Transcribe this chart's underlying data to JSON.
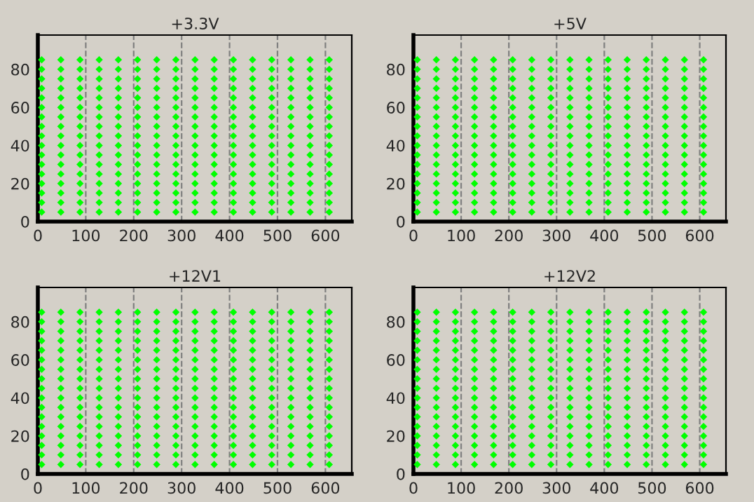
{
  "chart_data": [
    {
      "type": "scatter",
      "title": "+3.3V",
      "x": [
        8,
        48,
        88,
        128,
        168,
        208,
        248,
        288,
        328,
        368,
        408,
        448,
        488,
        528,
        568,
        608
      ],
      "xlim": [
        0,
        655
      ],
      "ylim": [
        0,
        98
      ],
      "xticks": [
        0,
        100,
        200,
        300,
        400,
        500,
        600
      ],
      "yticks": [
        0,
        20,
        40,
        60,
        80
      ],
      "grid": "x",
      "marker": "diamond",
      "series": [
        {
          "color": "#00ff00",
          "values": [
            5,
            5,
            5,
            5,
            5,
            5,
            5,
            5,
            5,
            5,
            5,
            5,
            5,
            5,
            5,
            5
          ]
        },
        {
          "color": "#00ff00",
          "values": [
            10,
            10,
            10,
            10,
            10,
            10,
            10,
            10,
            10,
            10,
            10,
            10,
            10,
            10,
            10,
            10
          ]
        },
        {
          "color": "#00ff00",
          "values": [
            15,
            15,
            15,
            15,
            15,
            15,
            15,
            15,
            15,
            15,
            15,
            15,
            15,
            15,
            15,
            15
          ]
        },
        {
          "color": "#00ff00",
          "values": [
            20,
            20,
            20,
            20,
            20,
            20,
            20,
            20,
            20,
            20,
            20,
            20,
            20,
            20,
            20,
            20
          ]
        },
        {
          "color": "#00ff00",
          "values": [
            25,
            25,
            25,
            25,
            25,
            25,
            25,
            25,
            25,
            25,
            25,
            25,
            25,
            25,
            25,
            25
          ]
        },
        {
          "color": "#00ff00",
          "values": [
            30,
            30,
            30,
            30,
            30,
            30,
            30,
            30,
            30,
            30,
            30,
            30,
            30,
            30,
            30,
            30
          ]
        },
        {
          "color": "#00ff00",
          "values": [
            35,
            35,
            35,
            35,
            35,
            35,
            35,
            35,
            35,
            35,
            35,
            35,
            35,
            35,
            35,
            35
          ]
        },
        {
          "color": "#00ff00",
          "values": [
            40,
            40,
            40,
            40,
            40,
            40,
            40,
            40,
            40,
            40,
            40,
            40,
            40,
            40,
            40,
            40
          ]
        },
        {
          "color": "#00ff00",
          "values": [
            45,
            45,
            45,
            45,
            45,
            45,
            45,
            45,
            45,
            45,
            45,
            45,
            45,
            45,
            45,
            45
          ]
        },
        {
          "color": "#00ff00",
          "values": [
            50,
            50,
            50,
            50,
            50,
            50,
            50,
            50,
            50,
            50,
            50,
            50,
            50,
            50,
            50,
            50
          ]
        },
        {
          "color": "#00ff00",
          "values": [
            55,
            55,
            55,
            55,
            55,
            55,
            55,
            55,
            55,
            55,
            55,
            55,
            55,
            55,
            55,
            55
          ]
        },
        {
          "color": "#00ff00",
          "values": [
            60,
            60,
            60,
            60,
            60,
            60,
            60,
            60,
            60,
            60,
            60,
            60,
            60,
            60,
            60,
            60
          ]
        },
        {
          "color": "#00ff00",
          "values": [
            65,
            65,
            65,
            65,
            65,
            65,
            65,
            65,
            65,
            65,
            65,
            65,
            65,
            65,
            65,
            65
          ]
        },
        {
          "color": "#00ff00",
          "values": [
            70,
            70,
            70,
            70,
            70,
            70,
            70,
            70,
            70,
            70,
            70,
            70,
            70,
            70,
            70,
            70
          ]
        },
        {
          "color": "#00ff00",
          "values": [
            75,
            75,
            75,
            75,
            75,
            75,
            75,
            75,
            75,
            75,
            75,
            75,
            75,
            75,
            75,
            75
          ]
        },
        {
          "color": "#00ff00",
          "values": [
            80,
            80,
            80,
            80,
            80,
            80,
            80,
            80,
            80,
            80,
            80,
            80,
            80,
            80,
            80,
            80
          ]
        },
        {
          "color": "#00ff00",
          "values": [
            85,
            85,
            85,
            85,
            85,
            85,
            85,
            85,
            85,
            85,
            85,
            85,
            85,
            85,
            85,
            85
          ]
        }
      ]
    },
    {
      "type": "scatter",
      "title": "+5V",
      "x": [
        8,
        48,
        88,
        128,
        168,
        208,
        248,
        288,
        328,
        368,
        408,
        448,
        488,
        528,
        568,
        608
      ],
      "xlim": [
        0,
        655
      ],
      "ylim": [
        0,
        98
      ],
      "xticks": [
        0,
        100,
        200,
        300,
        400,
        500,
        600
      ],
      "yticks": [
        0,
        20,
        40,
        60,
        80
      ],
      "grid": "x",
      "marker": "diamond",
      "series": [
        {
          "color": "#00ff00",
          "values": [
            5,
            5,
            5,
            5,
            5,
            5,
            5,
            5,
            5,
            5,
            5,
            5,
            5,
            5,
            5,
            5
          ]
        },
        {
          "color": "#00ff00",
          "values": [
            10,
            10,
            10,
            10,
            10,
            10,
            10,
            10,
            10,
            10,
            10,
            10,
            10,
            10,
            10,
            10
          ]
        },
        {
          "color": "#00ff00",
          "values": [
            15,
            15,
            15,
            15,
            15,
            15,
            15,
            15,
            15,
            15,
            15,
            15,
            15,
            15,
            15,
            15
          ]
        },
        {
          "color": "#00ff00",
          "values": [
            20,
            20,
            20,
            20,
            20,
            20,
            20,
            20,
            20,
            20,
            20,
            20,
            20,
            20,
            20,
            20
          ]
        },
        {
          "color": "#00ff00",
          "values": [
            25,
            25,
            25,
            25,
            25,
            25,
            25,
            25,
            25,
            25,
            25,
            25,
            25,
            25,
            25,
            25
          ]
        },
        {
          "color": "#00ff00",
          "values": [
            30,
            30,
            30,
            30,
            30,
            30,
            30,
            30,
            30,
            30,
            30,
            30,
            30,
            30,
            30,
            30
          ]
        },
        {
          "color": "#00ff00",
          "values": [
            35,
            35,
            35,
            35,
            35,
            35,
            35,
            35,
            35,
            35,
            35,
            35,
            35,
            35,
            35,
            35
          ]
        },
        {
          "color": "#00ff00",
          "values": [
            40,
            40,
            40,
            40,
            40,
            40,
            40,
            40,
            40,
            40,
            40,
            40,
            40,
            40,
            40,
            40
          ]
        },
        {
          "color": "#00ff00",
          "values": [
            45,
            45,
            45,
            45,
            45,
            45,
            45,
            45,
            45,
            45,
            45,
            45,
            45,
            45,
            45,
            45
          ]
        },
        {
          "color": "#00ff00",
          "values": [
            50,
            50,
            50,
            50,
            50,
            50,
            50,
            50,
            50,
            50,
            50,
            50,
            50,
            50,
            50,
            50
          ]
        },
        {
          "color": "#00ff00",
          "values": [
            55,
            55,
            55,
            55,
            55,
            55,
            55,
            55,
            55,
            55,
            55,
            55,
            55,
            55,
            55,
            55
          ]
        },
        {
          "color": "#00ff00",
          "values": [
            60,
            60,
            60,
            60,
            60,
            60,
            60,
            60,
            60,
            60,
            60,
            60,
            60,
            60,
            60,
            60
          ]
        },
        {
          "color": "#00ff00",
          "values": [
            65,
            65,
            65,
            65,
            65,
            65,
            65,
            65,
            65,
            65,
            65,
            65,
            65,
            65,
            65,
            65
          ]
        },
        {
          "color": "#00ff00",
          "values": [
            70,
            70,
            70,
            70,
            70,
            70,
            70,
            70,
            70,
            70,
            70,
            70,
            70,
            70,
            70,
            70
          ]
        },
        {
          "color": "#00ff00",
          "values": [
            75,
            75,
            75,
            75,
            75,
            75,
            75,
            75,
            75,
            75,
            75,
            75,
            75,
            75,
            75,
            75
          ]
        },
        {
          "color": "#00ff00",
          "values": [
            80,
            80,
            80,
            80,
            80,
            80,
            80,
            80,
            80,
            80,
            80,
            80,
            80,
            80,
            80,
            80
          ]
        },
        {
          "color": "#00ff00",
          "values": [
            85,
            85,
            85,
            85,
            85,
            85,
            85,
            85,
            85,
            85,
            85,
            85,
            85,
            85,
            85,
            85
          ]
        }
      ]
    },
    {
      "type": "scatter",
      "title": "+12V1",
      "x": [
        8,
        48,
        88,
        128,
        168,
        208,
        248,
        288,
        328,
        368,
        408,
        448,
        488,
        528,
        568,
        608
      ],
      "xlim": [
        0,
        655
      ],
      "ylim": [
        0,
        98
      ],
      "xticks": [
        0,
        100,
        200,
        300,
        400,
        500,
        600
      ],
      "yticks": [
        0,
        20,
        40,
        60,
        80
      ],
      "grid": "x",
      "marker": "diamond",
      "series": [
        {
          "color": "#00ff00",
          "values": [
            5,
            5,
            5,
            5,
            5,
            5,
            5,
            5,
            5,
            5,
            5,
            5,
            5,
            5,
            5,
            5
          ]
        },
        {
          "color": "#00ff00",
          "values": [
            10,
            10,
            10,
            10,
            10,
            10,
            10,
            10,
            10,
            10,
            10,
            10,
            10,
            10,
            10,
            10
          ]
        },
        {
          "color": "#00ff00",
          "values": [
            15,
            15,
            15,
            15,
            15,
            15,
            15,
            15,
            15,
            15,
            15,
            15,
            15,
            15,
            15,
            15
          ]
        },
        {
          "color": "#00ff00",
          "values": [
            20,
            20,
            20,
            20,
            20,
            20,
            20,
            20,
            20,
            20,
            20,
            20,
            20,
            20,
            20,
            20
          ]
        },
        {
          "color": "#00ff00",
          "values": [
            25,
            25,
            25,
            25,
            25,
            25,
            25,
            25,
            25,
            25,
            25,
            25,
            25,
            25,
            25,
            25
          ]
        },
        {
          "color": "#00ff00",
          "values": [
            30,
            30,
            30,
            30,
            30,
            30,
            30,
            30,
            30,
            30,
            30,
            30,
            30,
            30,
            30,
            30
          ]
        },
        {
          "color": "#00ff00",
          "values": [
            35,
            35,
            35,
            35,
            35,
            35,
            35,
            35,
            35,
            35,
            35,
            35,
            35,
            35,
            35,
            35
          ]
        },
        {
          "color": "#00ff00",
          "values": [
            40,
            40,
            40,
            40,
            40,
            40,
            40,
            40,
            40,
            40,
            40,
            40,
            40,
            40,
            40,
            40
          ]
        },
        {
          "color": "#00ff00",
          "values": [
            45,
            45,
            45,
            45,
            45,
            45,
            45,
            45,
            45,
            45,
            45,
            45,
            45,
            45,
            45,
            45
          ]
        },
        {
          "color": "#00ff00",
          "values": [
            50,
            50,
            50,
            50,
            50,
            50,
            50,
            50,
            50,
            50,
            50,
            50,
            50,
            50,
            50,
            50
          ]
        },
        {
          "color": "#00ff00",
          "values": [
            55,
            55,
            55,
            55,
            55,
            55,
            55,
            55,
            55,
            55,
            55,
            55,
            55,
            55,
            55,
            55
          ]
        },
        {
          "color": "#00ff00",
          "values": [
            60,
            60,
            60,
            60,
            60,
            60,
            60,
            60,
            60,
            60,
            60,
            60,
            60,
            60,
            60,
            60
          ]
        },
        {
          "color": "#00ff00",
          "values": [
            65,
            65,
            65,
            65,
            65,
            65,
            65,
            65,
            65,
            65,
            65,
            65,
            65,
            65,
            65,
            65
          ]
        },
        {
          "color": "#00ff00",
          "values": [
            70,
            70,
            70,
            70,
            70,
            70,
            70,
            70,
            70,
            70,
            70,
            70,
            70,
            70,
            70,
            70
          ]
        },
        {
          "color": "#00ff00",
          "values": [
            75,
            75,
            75,
            75,
            75,
            75,
            75,
            75,
            75,
            75,
            75,
            75,
            75,
            75,
            75,
            75
          ]
        },
        {
          "color": "#00ff00",
          "values": [
            80,
            80,
            80,
            80,
            80,
            80,
            80,
            80,
            80,
            80,
            80,
            80,
            80,
            80,
            80,
            80
          ]
        },
        {
          "color": "#00ff00",
          "values": [
            85,
            85,
            85,
            85,
            85,
            85,
            85,
            85,
            85,
            85,
            85,
            85,
            85,
            85,
            85,
            85
          ]
        }
      ]
    },
    {
      "type": "scatter",
      "title": "+12V2",
      "x": [
        8,
        48,
        88,
        128,
        168,
        208,
        248,
        288,
        328,
        368,
        408,
        448,
        488,
        528,
        568,
        608
      ],
      "xlim": [
        0,
        655
      ],
      "ylim": [
        0,
        98
      ],
      "xticks": [
        0,
        100,
        200,
        300,
        400,
        500,
        600
      ],
      "yticks": [
        0,
        20,
        40,
        60,
        80
      ],
      "grid": "x",
      "marker": "diamond",
      "series": [
        {
          "color": "#00ff00",
          "values": [
            5,
            5,
            5,
            5,
            5,
            5,
            5,
            5,
            5,
            5,
            5,
            5,
            5,
            5,
            5,
            5
          ]
        },
        {
          "color": "#00ff00",
          "values": [
            10,
            10,
            10,
            10,
            10,
            10,
            10,
            10,
            10,
            10,
            10,
            10,
            10,
            10,
            10,
            10
          ]
        },
        {
          "color": "#00ff00",
          "values": [
            15,
            15,
            15,
            15,
            15,
            15,
            15,
            15,
            15,
            15,
            15,
            15,
            15,
            15,
            15,
            15
          ]
        },
        {
          "color": "#00ff00",
          "values": [
            20,
            20,
            20,
            20,
            20,
            20,
            20,
            20,
            20,
            20,
            20,
            20,
            20,
            20,
            20,
            20
          ]
        },
        {
          "color": "#00ff00",
          "values": [
            25,
            25,
            25,
            25,
            25,
            25,
            25,
            25,
            25,
            25,
            25,
            25,
            25,
            25,
            25,
            25
          ]
        },
        {
          "color": "#00ff00",
          "values": [
            30,
            30,
            30,
            30,
            30,
            30,
            30,
            30,
            30,
            30,
            30,
            30,
            30,
            30,
            30,
            30
          ]
        },
        {
          "color": "#00ff00",
          "values": [
            35,
            35,
            35,
            35,
            35,
            35,
            35,
            35,
            35,
            35,
            35,
            35,
            35,
            35,
            35,
            35
          ]
        },
        {
          "color": "#00ff00",
          "values": [
            40,
            40,
            40,
            40,
            40,
            40,
            40,
            40,
            40,
            40,
            40,
            40,
            40,
            40,
            40,
            40
          ]
        },
        {
          "color": "#00ff00",
          "values": [
            45,
            45,
            45,
            45,
            45,
            45,
            45,
            45,
            45,
            45,
            45,
            45,
            45,
            45,
            45,
            45
          ]
        },
        {
          "color": "#00ff00",
          "values": [
            50,
            50,
            50,
            50,
            50,
            50,
            50,
            50,
            50,
            50,
            50,
            50,
            50,
            50,
            50,
            50
          ]
        },
        {
          "color": "#00ff00",
          "values": [
            55,
            55,
            55,
            55,
            55,
            55,
            55,
            55,
            55,
            55,
            55,
            55,
            55,
            55,
            55,
            55
          ]
        },
        {
          "color": "#00ff00",
          "values": [
            60,
            60,
            60,
            60,
            60,
            60,
            60,
            60,
            60,
            60,
            60,
            60,
            60,
            60,
            60,
            60
          ]
        },
        {
          "color": "#00ff00",
          "values": [
            65,
            65,
            65,
            65,
            65,
            65,
            65,
            65,
            65,
            65,
            65,
            65,
            65,
            65,
            65,
            65
          ]
        },
        {
          "color": "#00ff00",
          "values": [
            70,
            70,
            70,
            70,
            70,
            70,
            70,
            70,
            70,
            70,
            70,
            70,
            70,
            70,
            70,
            70
          ]
        },
        {
          "color": "#00ff00",
          "values": [
            75,
            75,
            75,
            75,
            75,
            75,
            75,
            75,
            75,
            75,
            75,
            75,
            75,
            75,
            75,
            75
          ]
        },
        {
          "color": "#00ff00",
          "values": [
            80,
            80,
            80,
            80,
            80,
            80,
            80,
            80,
            80,
            80,
            80,
            80,
            80,
            80,
            80,
            80
          ]
        },
        {
          "color": "#00ff00",
          "values": [
            85,
            85,
            85,
            85,
            85,
            85,
            85,
            85,
            85,
            85,
            85,
            85,
            85,
            85,
            85,
            85
          ]
        }
      ]
    }
  ]
}
